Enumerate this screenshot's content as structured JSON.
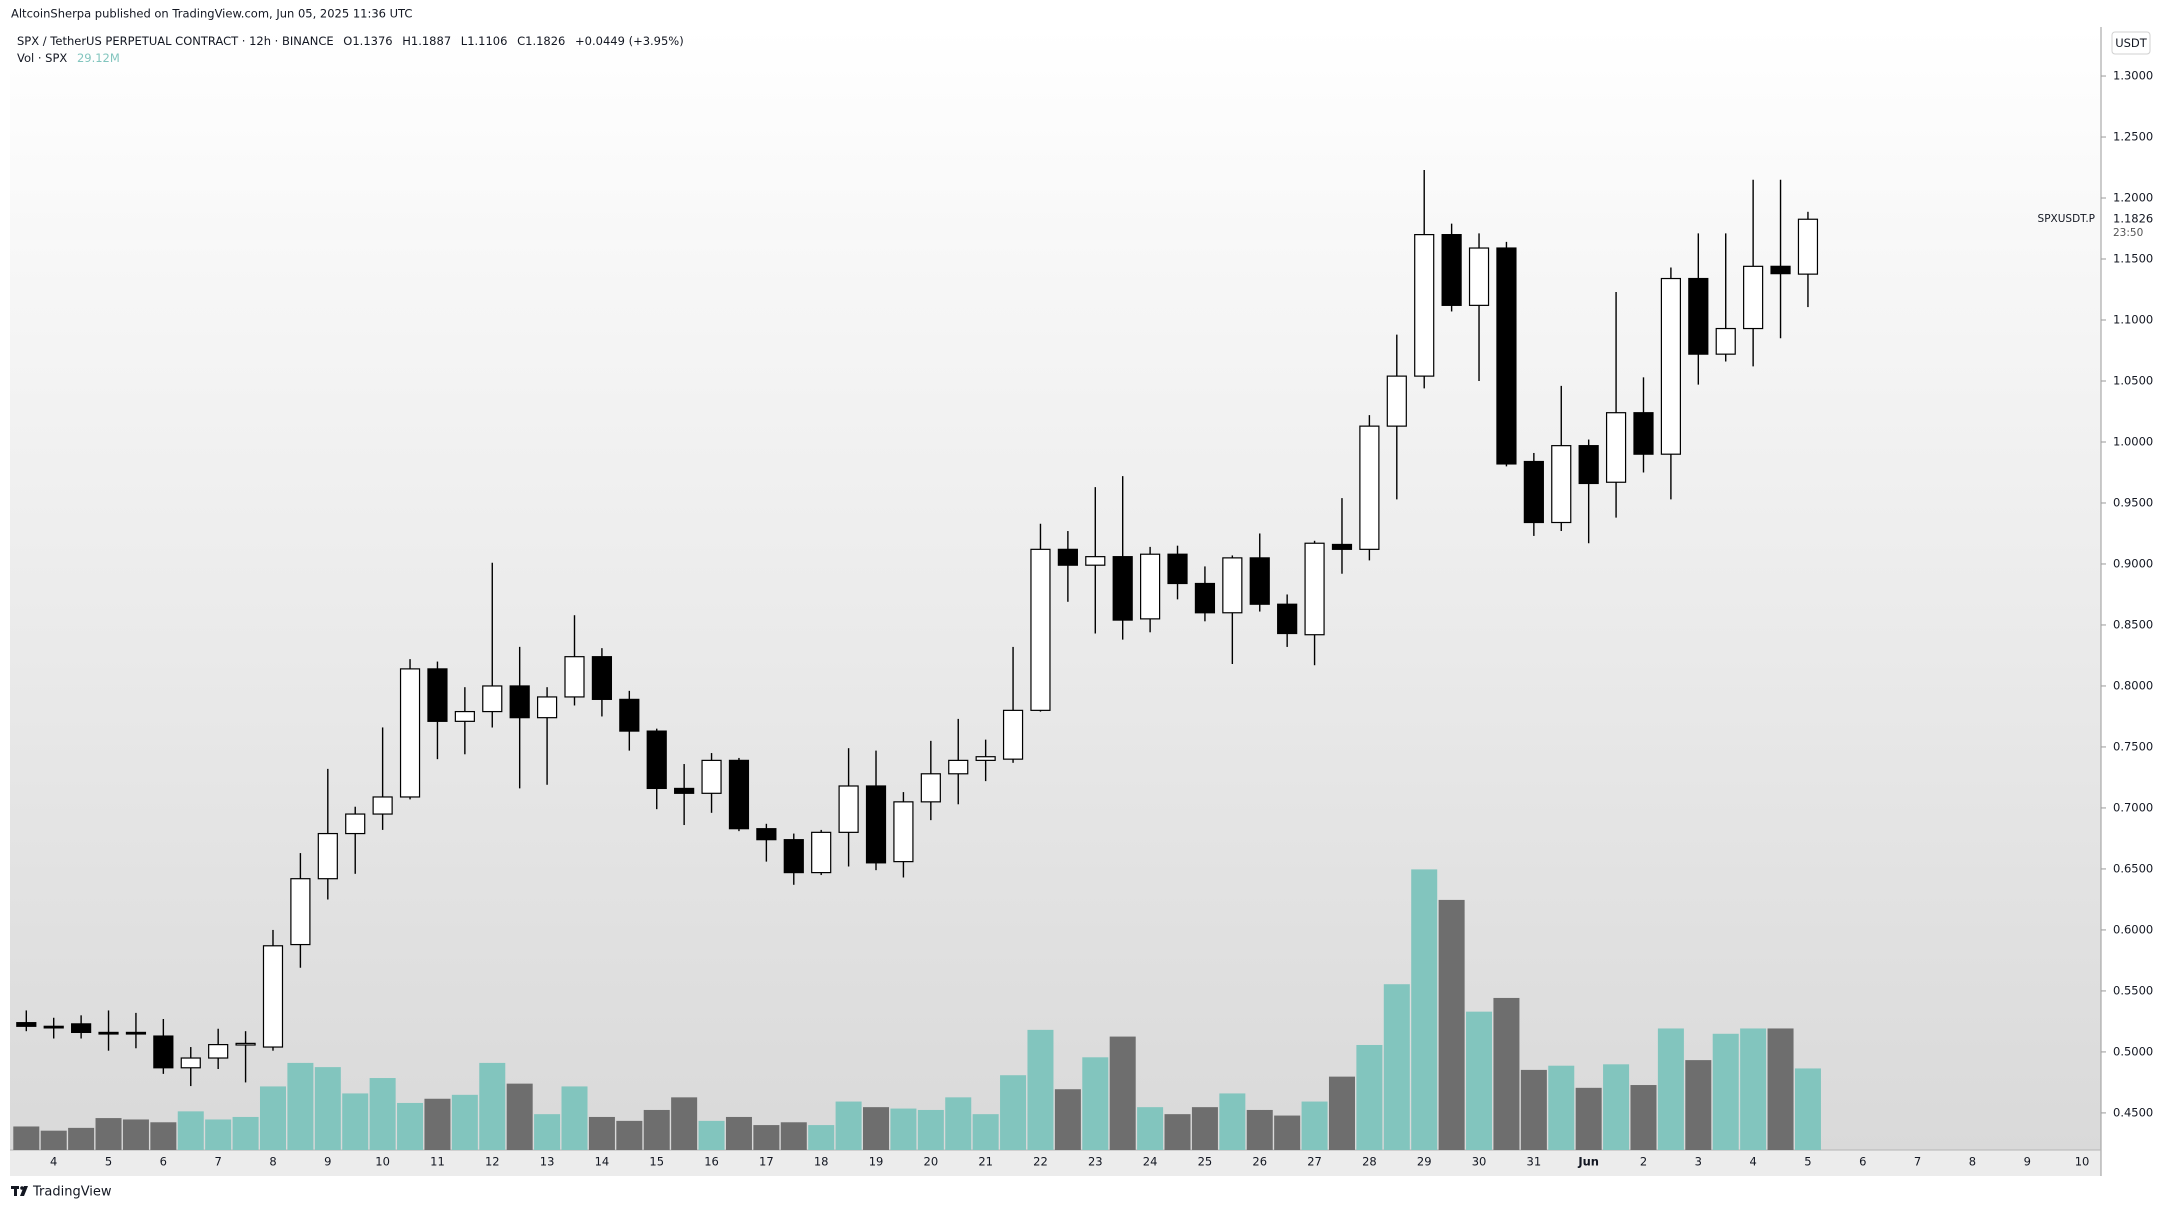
{
  "header": {
    "publisher": "AltcoinSherpa published on TradingView.com, Jun 05, 2025 11:36 UTC"
  },
  "chart_data": {
    "type": "candlestick",
    "title": "SPX / TetherUS PERPETUAL CONTRACT · 12h · BINANCE",
    "legend_values": [
      "O1.1376",
      "H1.1887",
      "L1.1106",
      "C1.1826",
      "+0.0449 (+3.95%)"
    ],
    "symbol_label": "SPXUSDT.P",
    "countdown": "23:50",
    "currency": "USDT",
    "categories": [
      null,
      "4",
      null,
      "5",
      null,
      "6",
      null,
      "7",
      null,
      "8",
      null,
      "9",
      null,
      "10",
      null,
      "11",
      null,
      "12",
      null,
      "13",
      null,
      "14",
      null,
      "15",
      null,
      "16",
      null,
      "17",
      null,
      "18",
      null,
      "19",
      null,
      "20",
      null,
      "21",
      null,
      "22",
      null,
      "23",
      null,
      "24",
      null,
      "25",
      null,
      "26",
      null,
      "27",
      null,
      "28",
      null,
      "29",
      null,
      "30",
      null,
      "31",
      null,
      "Jun",
      null,
      "2",
      null,
      "3",
      null,
      "4",
      null,
      "5",
      null,
      "6",
      null,
      "7",
      null,
      "8",
      null,
      "9",
      null,
      "10"
    ],
    "open": [
      0.524,
      0.521,
      0.523,
      0.516,
      0.516,
      0.513,
      0.487,
      0.495,
      0.506,
      0.504,
      0.588,
      0.642,
      0.679,
      0.695,
      0.709,
      0.814,
      0.771,
      0.779,
      0.8,
      0.774,
      0.791,
      0.824,
      0.789,
      0.763,
      0.716,
      0.712,
      0.739,
      0.683,
      0.674,
      0.647,
      0.68,
      0.718,
      0.656,
      0.705,
      0.728,
      0.739,
      0.74,
      0.78,
      0.912,
      0.899,
      0.906,
      0.855,
      0.908,
      0.884,
      0.86,
      0.905,
      0.867,
      0.842,
      0.916,
      0.912,
      1.013,
      1.054,
      1.17,
      1.112,
      1.159,
      0.984,
      0.934,
      0.997,
      0.967,
      1.024,
      0.99,
      1.134,
      1.072,
      1.093,
      1.144,
      1.1376,
      null,
      null,
      null,
      null,
      null,
      null,
      null,
      null,
      null,
      null
    ],
    "high": [
      0.534,
      0.528,
      0.53,
      0.534,
      0.532,
      0.527,
      0.504,
      0.519,
      0.517,
      0.6,
      0.663,
      0.732,
      0.701,
      0.766,
      0.822,
      0.82,
      0.799,
      0.901,
      0.832,
      0.799,
      0.858,
      0.831,
      0.796,
      0.765,
      0.736,
      0.745,
      0.741,
      0.687,
      0.679,
      0.682,
      0.749,
      0.747,
      0.713,
      0.755,
      0.773,
      0.756,
      0.832,
      0.933,
      0.927,
      0.963,
      0.972,
      0.914,
      0.915,
      0.898,
      0.907,
      0.925,
      0.875,
      0.919,
      0.954,
      1.022,
      1.088,
      1.223,
      1.179,
      1.171,
      1.164,
      0.991,
      1.046,
      1.002,
      1.123,
      1.053,
      1.143,
      1.171,
      1.171,
      1.215,
      1.215,
      1.1887,
      null,
      null,
      null,
      null,
      null,
      null,
      null,
      null,
      null,
      null
    ],
    "low": [
      0.517,
      0.511,
      0.511,
      0.501,
      0.503,
      0.482,
      0.472,
      0.486,
      0.475,
      0.501,
      0.569,
      0.625,
      0.646,
      0.682,
      0.707,
      0.74,
      0.744,
      0.766,
      0.716,
      0.719,
      0.784,
      0.775,
      0.747,
      0.699,
      0.686,
      0.696,
      0.681,
      0.656,
      0.637,
      0.645,
      0.652,
      0.649,
      0.643,
      0.69,
      0.703,
      0.722,
      0.737,
      0.779,
      0.869,
      0.843,
      0.838,
      0.844,
      0.871,
      0.853,
      0.818,
      0.861,
      0.832,
      0.817,
      0.892,
      0.903,
      0.953,
      1.044,
      1.107,
      1.05,
      0.98,
      0.923,
      0.927,
      0.917,
      0.938,
      0.975,
      0.953,
      1.047,
      1.066,
      1.062,
      1.085,
      1.1106,
      null,
      null,
      null,
      null,
      null,
      null,
      null,
      null,
      null,
      null
    ],
    "close": [
      0.521,
      0.52,
      0.516,
      0.515,
      0.515,
      0.487,
      0.495,
      0.506,
      0.507,
      0.587,
      0.642,
      0.679,
      0.695,
      0.709,
      0.814,
      0.771,
      0.779,
      0.8,
      0.774,
      0.791,
      0.824,
      0.789,
      0.763,
      0.716,
      0.712,
      0.739,
      0.683,
      0.674,
      0.647,
      0.68,
      0.718,
      0.655,
      0.705,
      0.728,
      0.739,
      0.742,
      0.78,
      0.912,
      0.899,
      0.906,
      0.854,
      0.908,
      0.884,
      0.86,
      0.905,
      0.867,
      0.843,
      0.917,
      0.912,
      1.013,
      1.054,
      1.17,
      1.112,
      1.159,
      0.982,
      0.934,
      0.997,
      0.966,
      1.024,
      0.99,
      1.134,
      1.072,
      1.093,
      1.144,
      1.138,
      1.1826,
      null,
      null,
      null,
      null,
      null,
      null,
      null,
      null,
      null,
      null
    ],
    "volume": {
      "name": "Vol · SPX",
      "last_value_label": "29.12M",
      "values": [
        8.4,
        6.9,
        7.9,
        11.4,
        10.9,
        9.9,
        13.8,
        10.9,
        11.8,
        22.7,
        31.1,
        29.6,
        20.2,
        25.7,
        16.8,
        18.3,
        19.7,
        31.1,
        23.7,
        12.8,
        22.7,
        11.8,
        10.4,
        14.3,
        18.8,
        10.4,
        11.8,
        8.9,
        9.9,
        8.9,
        17.3,
        15.3,
        14.8,
        14.3,
        18.8,
        12.8,
        26.7,
        42.9,
        21.7,
        33.1,
        40.5,
        15.3,
        12.8,
        15.3,
        20.2,
        14.3,
        12.3,
        17.3,
        26.2,
        37.5,
        59.2,
        100.2,
        89.3,
        49.4,
        54.3,
        28.6,
        30.1,
        22.2,
        30.6,
        23.2,
        43.4,
        32.1,
        41.5,
        43.4,
        43.4,
        29.12,
        null,
        null,
        null,
        null,
        null,
        null,
        null,
        null,
        null,
        null
      ]
    },
    "up_color": "#ffffff",
    "down_color": "#000000",
    "wick_color": "#000000",
    "volume_up_color": "#82c5be",
    "volume_down_color": "#6e6e6e",
    "ylim": [
      0.4196,
      1.3397
    ],
    "yticks": [
      {
        "value": 0.45,
        "label": "0.4500"
      },
      {
        "value": 0.5,
        "label": "0.5000"
      },
      {
        "value": 0.55,
        "label": "0.5500"
      },
      {
        "value": 0.6,
        "label": "0.6000"
      },
      {
        "value": 0.65,
        "label": "0.6500"
      },
      {
        "value": 0.7,
        "label": "0.7000"
      },
      {
        "value": 0.75,
        "label": "0.7500"
      },
      {
        "value": 0.8,
        "label": "0.8000"
      },
      {
        "value": 0.85,
        "label": "0.8500"
      },
      {
        "value": 0.9,
        "label": "0.9000"
      },
      {
        "value": 0.95,
        "label": "0.9500"
      },
      {
        "value": 1,
        "label": "1.0000"
      },
      {
        "value": 1.05,
        "label": "1.0500"
      },
      {
        "value": 1.1,
        "label": "1.1000"
      },
      {
        "value": 1.15,
        "label": "1.1500"
      },
      {
        "value": 1.2,
        "label": "1.2000"
      },
      {
        "value": 1.25,
        "label": "1.2500"
      },
      {
        "value": 1.3,
        "label": "1.3000"
      }
    ],
    "grid": false
  },
  "footer": {
    "brand": "TradingView"
  }
}
